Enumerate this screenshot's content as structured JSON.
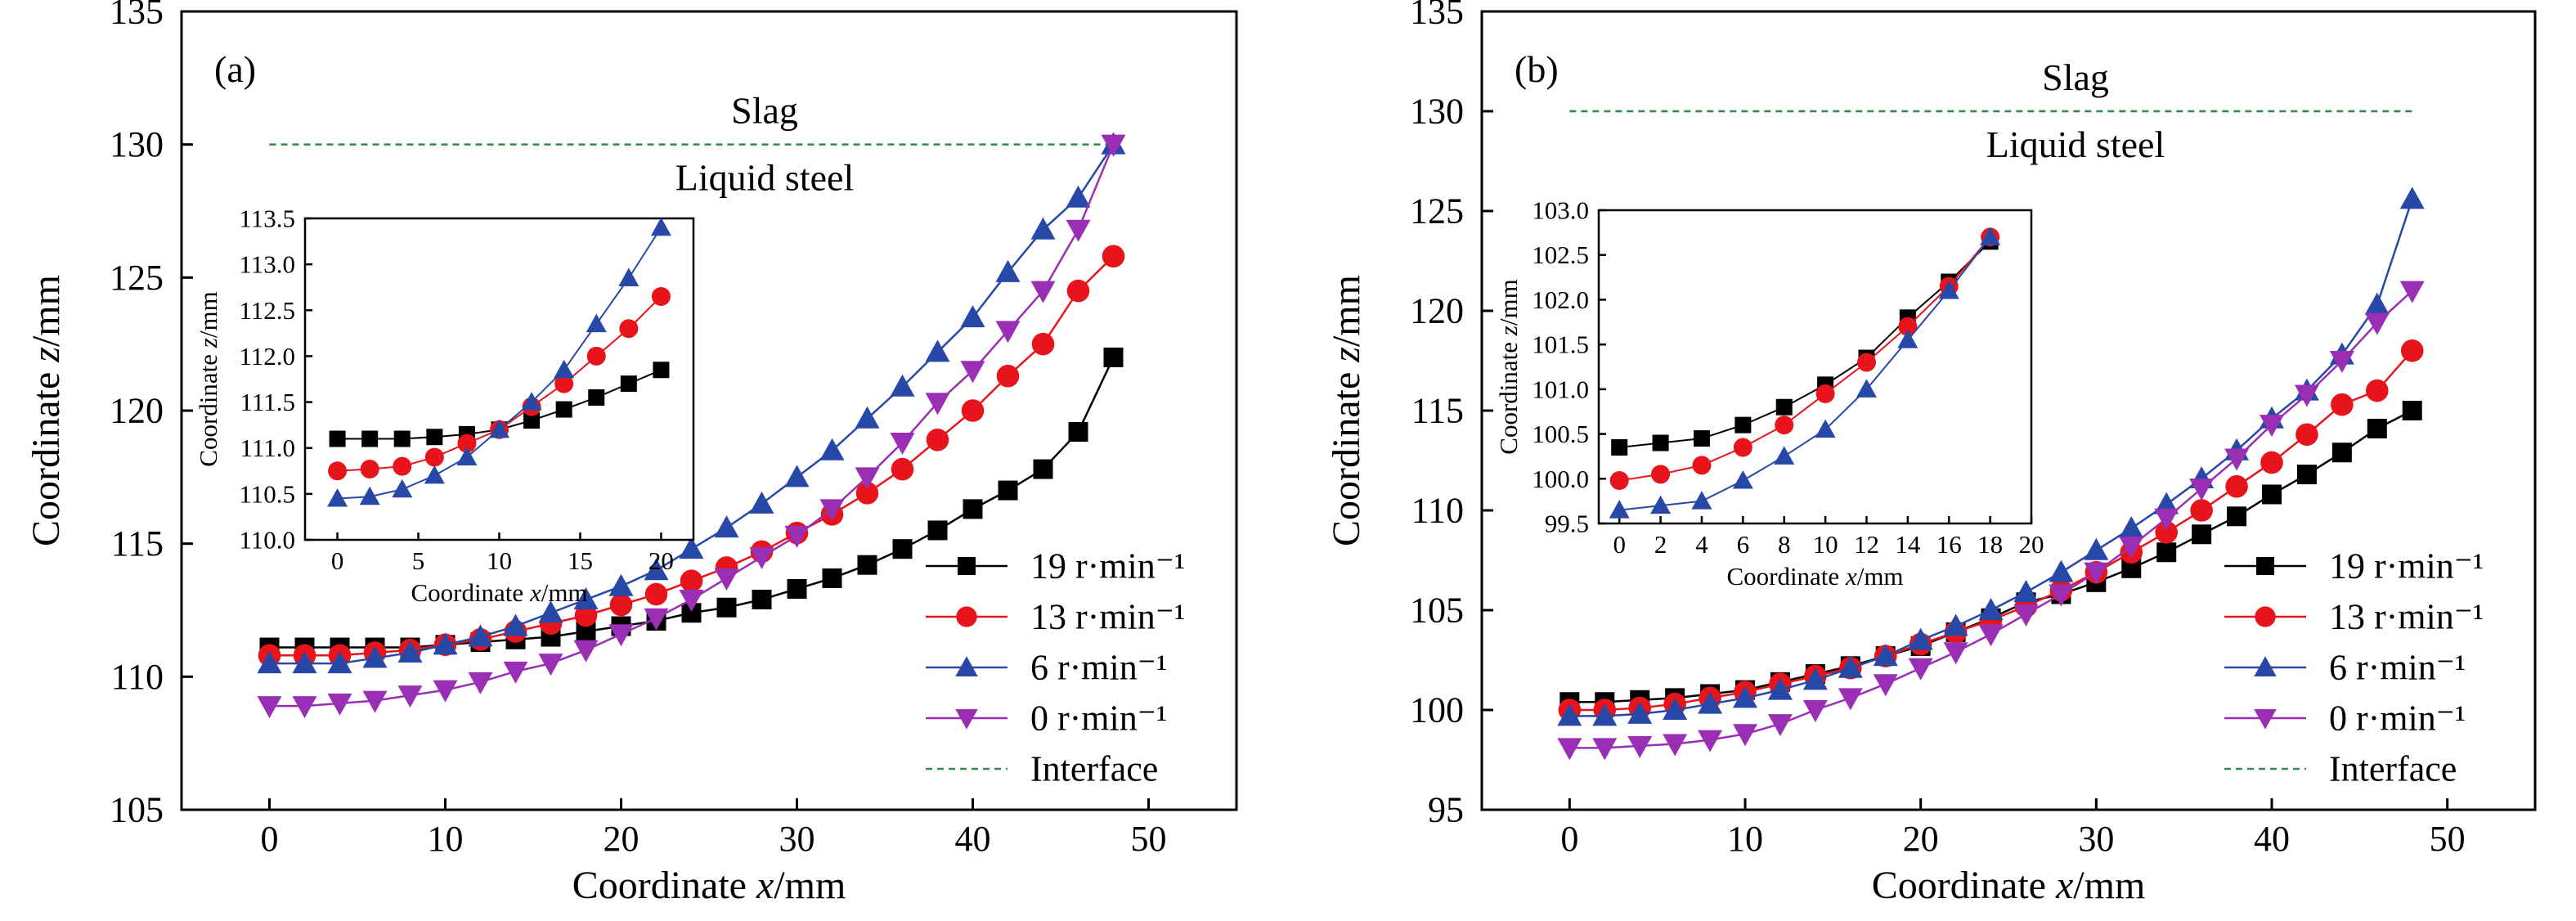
{
  "series_styles": {
    "19": {
      "color": "#000000",
      "marker": "square"
    },
    "13": {
      "color": "#e8141b",
      "marker": "circle"
    },
    "6": {
      "color": "#2848a8",
      "marker": "triangle-up"
    },
    "0": {
      "color": "#9a2fb5",
      "marker": "triangle-down"
    },
    "interface": {
      "color": "#2f8a4c",
      "dash": "dashed"
    }
  },
  "chart_data": [
    {
      "id": "a",
      "type": "line",
      "panel_label": "(a)",
      "xlabel": "Coordinate x/mm",
      "ylabel": "Coordinate z/mm",
      "xlim": [
        -5,
        55
      ],
      "ylim": [
        105,
        135
      ],
      "xticks": [
        0,
        10,
        20,
        30,
        40,
        50
      ],
      "yticks": [
        105,
        110,
        115,
        120,
        125,
        130,
        135
      ],
      "slag_label": "Slag",
      "steel_label": "Liquid steel",
      "interface": {
        "name": "Interface",
        "x": [
          0,
          48
        ],
        "y": 130
      },
      "legend_position": "bottom-right",
      "series": [
        {
          "key": "19",
          "name": "19 r·min⁻¹",
          "x": [
            0,
            2,
            4,
            6,
            8,
            10,
            12,
            14,
            16,
            18,
            20,
            22,
            24,
            26,
            28,
            30,
            32,
            34,
            36,
            38,
            40,
            42,
            44,
            46,
            48
          ],
          "y": [
            111.1,
            111.1,
            111.1,
            111.1,
            111.1,
            111.2,
            111.3,
            111.4,
            111.5,
            111.7,
            111.9,
            112.1,
            112.4,
            112.6,
            112.9,
            113.3,
            113.7,
            114.2,
            114.8,
            115.5,
            116.3,
            117.0,
            117.8,
            119.2,
            122.0
          ]
        },
        {
          "key": "13",
          "name": "13 r·min⁻¹",
          "x": [
            0,
            2,
            4,
            6,
            8,
            10,
            12,
            14,
            16,
            18,
            20,
            22,
            24,
            26,
            28,
            30,
            32,
            34,
            36,
            38,
            40,
            42,
            44,
            46,
            48
          ],
          "y": [
            110.8,
            110.8,
            110.8,
            110.9,
            111.0,
            111.2,
            111.4,
            111.7,
            112.0,
            112.3,
            112.7,
            113.1,
            113.6,
            114.1,
            114.7,
            115.4,
            116.1,
            116.9,
            117.8,
            118.9,
            120.0,
            121.3,
            122.5,
            124.5,
            125.8
          ]
        },
        {
          "key": "6",
          "name": "6 r·min⁻¹",
          "x": [
            0,
            2,
            4,
            6,
            8,
            10,
            12,
            14,
            16,
            18,
            20,
            22,
            24,
            26,
            28,
            30,
            32,
            34,
            36,
            38,
            40,
            42,
            44,
            46,
            48
          ],
          "y": [
            110.5,
            110.5,
            110.5,
            110.7,
            110.9,
            111.2,
            111.5,
            111.9,
            112.4,
            112.9,
            113.4,
            114.0,
            114.8,
            115.6,
            116.5,
            117.5,
            118.5,
            119.7,
            120.9,
            122.2,
            123.5,
            125.2,
            126.8,
            128.0,
            130.0
          ]
        },
        {
          "key": "0",
          "name": "0 r·min⁻¹",
          "x": [
            0,
            2,
            4,
            6,
            8,
            10,
            12,
            14,
            16,
            18,
            20,
            22,
            24,
            26,
            28,
            30,
            32,
            34,
            36,
            38,
            40,
            42,
            44,
            46,
            48
          ],
          "y": [
            108.9,
            108.9,
            109.0,
            109.1,
            109.3,
            109.5,
            109.8,
            110.2,
            110.5,
            111.0,
            111.6,
            112.2,
            112.9,
            113.7,
            114.5,
            115.3,
            116.3,
            117.5,
            118.8,
            120.3,
            121.5,
            123.0,
            124.5,
            126.8,
            130.0
          ]
        }
      ],
      "inset": {
        "xlabel": "Coordinate x/mm",
        "ylabel": "Coordinate z/mm",
        "xlim": [
          -2,
          22
        ],
        "ylim": [
          110.0,
          113.5
        ],
        "xticks": [
          0,
          5,
          10,
          15,
          20
        ],
        "yticks": [
          "110.0",
          "110.5",
          "111.0",
          "111.5",
          "112.0",
          "112.5",
          "113.0",
          "113.5"
        ],
        "series": [
          {
            "key": "19",
            "x": [
              0,
              2,
              4,
              6,
              8,
              10,
              12,
              14,
              16,
              18,
              20
            ],
            "y": [
              111.1,
              111.1,
              111.1,
              111.12,
              111.15,
              111.2,
              111.3,
              111.42,
              111.55,
              111.7,
              111.85
            ]
          },
          {
            "key": "13",
            "x": [
              0,
              2,
              4,
              6,
              8,
              10,
              12,
              14,
              16,
              18,
              20
            ],
            "y": [
              110.75,
              110.77,
              110.8,
              110.9,
              111.05,
              111.2,
              111.45,
              111.7,
              112.0,
              112.3,
              112.65
            ]
          },
          {
            "key": "6",
            "x": [
              0,
              2,
              4,
              6,
              8,
              10,
              12,
              14,
              16,
              18,
              20
            ],
            "y": [
              110.45,
              110.47,
              110.55,
              110.7,
              110.9,
              111.2,
              111.5,
              111.85,
              112.35,
              112.85,
              113.4
            ]
          }
        ]
      }
    },
    {
      "id": "b",
      "type": "line",
      "panel_label": "(b)",
      "xlabel": "Coordinate x/mm",
      "ylabel": "Coordinate z/mm",
      "xlim": [
        -5,
        55
      ],
      "ylim": [
        95,
        135
      ],
      "xticks": [
        0,
        10,
        20,
        30,
        40,
        50
      ],
      "yticks": [
        95,
        100,
        105,
        110,
        115,
        120,
        125,
        130,
        135
      ],
      "slag_label": "Slag",
      "steel_label": "Liquid steel",
      "interface": {
        "name": "Interface",
        "x": [
          0,
          48
        ],
        "y": 130
      },
      "legend_position": "bottom-right",
      "series": [
        {
          "key": "19",
          "name": "19 r·min⁻¹",
          "x": [
            0,
            2,
            4,
            6,
            8,
            10,
            12,
            14,
            16,
            18,
            20,
            22,
            24,
            26,
            28,
            30,
            32,
            34,
            36,
            38,
            40,
            42,
            44,
            46,
            48
          ],
          "y": [
            100.4,
            100.4,
            100.5,
            100.6,
            100.8,
            101.0,
            101.4,
            101.8,
            102.2,
            102.7,
            103.2,
            103.9,
            104.6,
            105.4,
            105.8,
            106.4,
            107.1,
            107.9,
            108.8,
            109.7,
            110.8,
            111.8,
            112.9,
            114.1,
            115.0
          ]
        },
        {
          "key": "13",
          "name": "13 r·min⁻¹",
          "x": [
            0,
            2,
            4,
            6,
            8,
            10,
            12,
            14,
            16,
            18,
            20,
            22,
            24,
            26,
            28,
            30,
            32,
            34,
            36,
            38,
            40,
            42,
            44,
            46,
            48
          ],
          "y": [
            100.0,
            100.0,
            100.1,
            100.3,
            100.6,
            100.9,
            101.3,
            101.7,
            102.1,
            102.7,
            103.3,
            103.9,
            104.5,
            105.2,
            106.0,
            106.9,
            107.9,
            108.9,
            110.0,
            111.2,
            112.4,
            113.8,
            115.3,
            116.0,
            118.0
          ]
        },
        {
          "key": "6",
          "name": "6 r·min⁻¹",
          "x": [
            0,
            2,
            4,
            6,
            8,
            10,
            12,
            14,
            16,
            18,
            20,
            22,
            24,
            26,
            28,
            30,
            32,
            34,
            36,
            38,
            40,
            42,
            44,
            46,
            48
          ],
          "y": [
            99.7,
            99.7,
            99.8,
            100.0,
            100.3,
            100.6,
            101.0,
            101.5,
            102.1,
            102.7,
            103.5,
            104.2,
            105.0,
            105.9,
            106.9,
            108.0,
            109.1,
            110.3,
            111.6,
            113.0,
            114.6,
            116.0,
            117.8,
            120.3,
            125.6
          ]
        },
        {
          "key": "0",
          "name": "0 r·min⁻¹",
          "x": [
            0,
            2,
            4,
            6,
            8,
            10,
            12,
            14,
            16,
            18,
            20,
            22,
            24,
            26,
            28,
            30,
            32,
            34,
            36,
            38,
            40,
            42,
            44,
            46,
            48
          ],
          "y": [
            98.1,
            98.1,
            98.2,
            98.3,
            98.5,
            98.8,
            99.3,
            100.0,
            100.6,
            101.3,
            102.1,
            102.9,
            103.8,
            104.8,
            105.8,
            106.9,
            108.2,
            109.6,
            111.1,
            112.6,
            114.3,
            115.8,
            117.5,
            119.4,
            121.0
          ]
        }
      ],
      "inset": {
        "xlabel": "Coordinate x/mm",
        "ylabel": "Coordinate z/mm",
        "xlim": [
          -1,
          20
        ],
        "ylim": [
          99.5,
          103.0
        ],
        "xticks": [
          0,
          2,
          4,
          6,
          8,
          10,
          12,
          14,
          16,
          18,
          20
        ],
        "yticks": [
          "99.5",
          "100.0",
          "100.5",
          "101.0",
          "101.5",
          "102.0",
          "102.5",
          "103.0"
        ],
        "series": [
          {
            "key": "19",
            "x": [
              0,
              2,
              4,
              6,
              8,
              10,
              12,
              14,
              16,
              18
            ],
            "y": [
              100.35,
              100.4,
              100.45,
              100.6,
              100.8,
              101.05,
              101.35,
              101.8,
              102.2,
              102.65
            ]
          },
          {
            "key": "13",
            "x": [
              0,
              2,
              4,
              6,
              8,
              10,
              12,
              14,
              16,
              18
            ],
            "y": [
              99.98,
              100.05,
              100.15,
              100.35,
              100.6,
              100.95,
              101.3,
              101.7,
              102.15,
              102.7
            ]
          },
          {
            "key": "6",
            "x": [
              0,
              2,
              4,
              6,
              8,
              10,
              12,
              14,
              16,
              18
            ],
            "y": [
              99.65,
              99.7,
              99.75,
              99.98,
              100.25,
              100.55,
              101.0,
              101.55,
              102.1,
              102.7
            ]
          }
        ]
      }
    }
  ]
}
